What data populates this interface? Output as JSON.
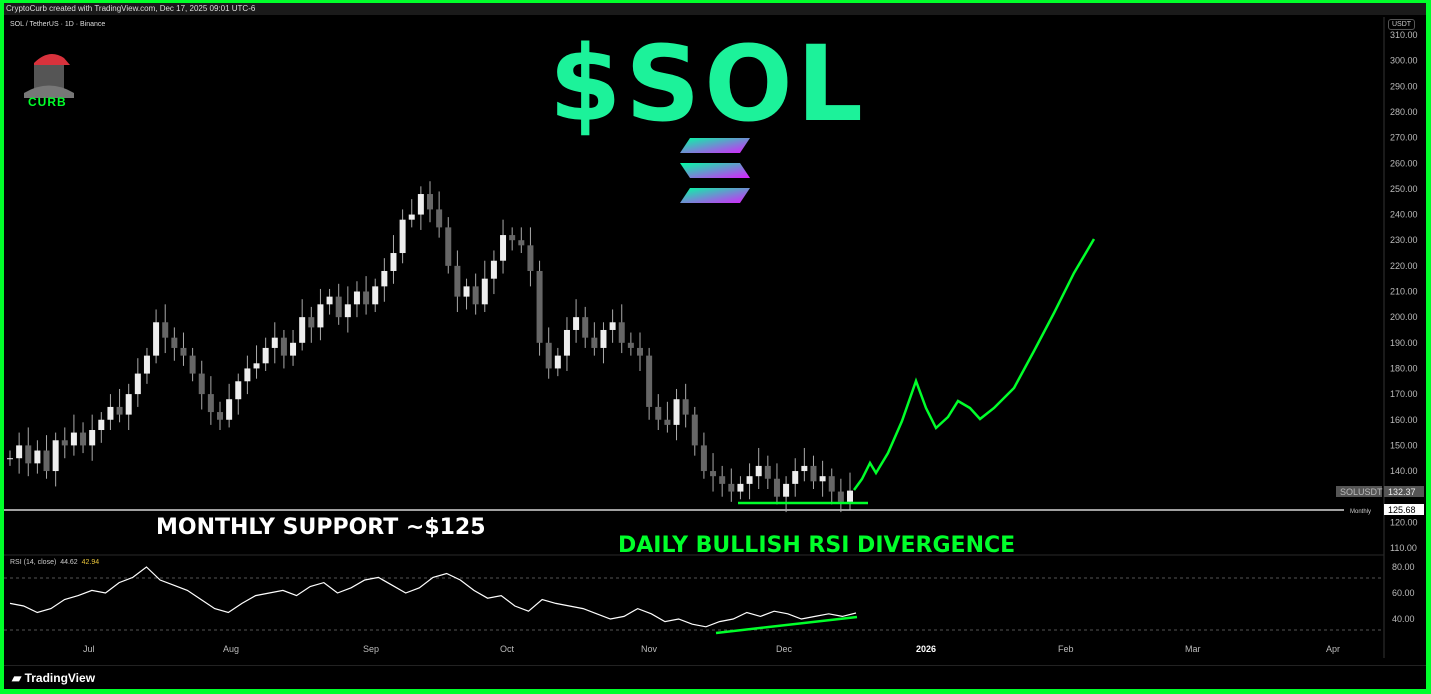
{
  "header": {
    "created_by": "CryptoCurb created with TradingView.com, Dec 17, 2025 09:01 UTC-6",
    "symbol": "SOL / TetherUS · 1D · Binance",
    "currency": "USDT"
  },
  "logo": {
    "text": "CURB"
  },
  "title": "$SOL",
  "annotations": {
    "support": "MONTHLY SUPPORT ~$125",
    "divergence": "DAILY BULLISH RSI DIVERGENCE"
  },
  "price_axis": [
    "310.00",
    "300.00",
    "290.00",
    "280.00",
    "270.00",
    "260.00",
    "250.00",
    "240.00",
    "230.00",
    "220.00",
    "210.00",
    "200.00",
    "190.00",
    "180.00",
    "170.00",
    "160.00",
    "150.00",
    "140.00",
    "120.00",
    "110.00"
  ],
  "last_price": {
    "label": "SOLUSDT",
    "value": "132.37"
  },
  "monthly_level": {
    "label": "Monthly",
    "value": "125.68"
  },
  "rsi": {
    "label": "RSI (14, close)",
    "value1": "44.62",
    "value2": "42.94",
    "axis": [
      "80.00",
      "60.00",
      "40.00"
    ]
  },
  "time_axis": [
    "Jul",
    "Aug",
    "Sep",
    "Oct",
    "Nov",
    "Dec",
    "2026",
    "Feb",
    "Mar",
    "Apr"
  ],
  "footer": {
    "brand": "TradingView"
  },
  "colors": {
    "accent": "#00ff2a",
    "title": "#1cf29a"
  },
  "chart_data": {
    "type": "candlestick",
    "closes": [
      145,
      150,
      143,
      148,
      140,
      152,
      150,
      155,
      150,
      156,
      160,
      165,
      162,
      170,
      178,
      185,
      198,
      192,
      188,
      185,
      178,
      170,
      163,
      160,
      168,
      175,
      180,
      182,
      188,
      192,
      185,
      190,
      200,
      196,
      205,
      208,
      200,
      205,
      210,
      205,
      212,
      218,
      225,
      238,
      240,
      248,
      242,
      235,
      220,
      208,
      212,
      205,
      215,
      222,
      232,
      230,
      228,
      218,
      190,
      180,
      185,
      195,
      200,
      192,
      188,
      195,
      198,
      190,
      188,
      185,
      165,
      160,
      158,
      168,
      162,
      150,
      140,
      138,
      135,
      132,
      135,
      138,
      142,
      137,
      130,
      135,
      140,
      142,
      136,
      138,
      132,
      128,
      132.37
    ],
    "rsi": [
      52,
      50,
      45,
      48,
      55,
      58,
      62,
      60,
      68,
      72,
      80,
      70,
      66,
      62,
      55,
      48,
      45,
      52,
      58,
      60,
      62,
      58,
      65,
      68,
      60,
      64,
      70,
      72,
      66,
      60,
      64,
      72,
      75,
      70,
      62,
      56,
      58,
      50,
      46,
      55,
      52,
      50,
      48,
      44,
      40,
      42,
      48,
      44,
      38,
      40,
      36,
      34,
      38,
      40,
      45,
      42,
      46,
      44,
      40,
      42,
      44,
      42,
      44.62
    ],
    "ylim": [
      110,
      310
    ]
  }
}
